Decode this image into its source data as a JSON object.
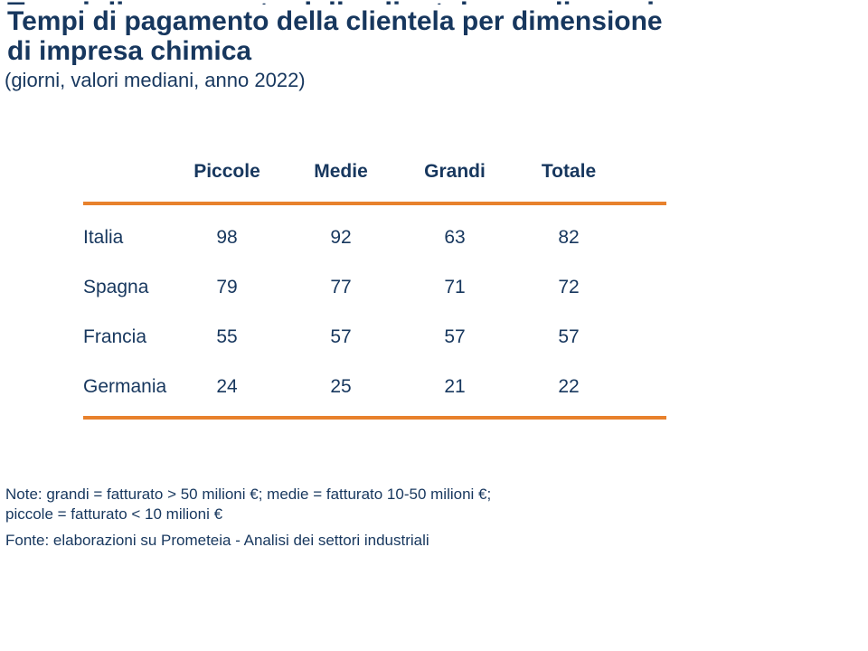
{
  "slide": {
    "title_line1": "Tempi di pagamento della clientela per dimensione",
    "title_line2": "di impresa chimica",
    "subtitle": "(giorni, valori mediani, anno 2022)",
    "note_line1": "Note: grandi = fatturato > 50 milioni €; medie = fatturato 10-50 milioni €;",
    "note_line2": "piccole = fatturato < 10 milioni €",
    "source": "Fonte: elaborazioni su Prometeia - Analisi dei settori industriali"
  },
  "colors": {
    "navy_text": "#17375E",
    "orange_rule": "#E8812C"
  },
  "chart_data": {
    "type": "table",
    "title": "Tempi di pagamento della clientela per dimensione di impresa chimica",
    "subtitle": "(giorni, valori mediani, anno 2022)",
    "unit": "giorni, valori mediani, anno 2022",
    "columns": [
      "Piccole",
      "Medie",
      "Grandi",
      "Totale"
    ],
    "rows": [
      {
        "label": "Italia",
        "values": [
          98,
          92,
          63,
          82
        ]
      },
      {
        "label": "Spagna",
        "values": [
          79,
          77,
          71,
          72
        ]
      },
      {
        "label": "Francia",
        "values": [
          55,
          57,
          57,
          57
        ]
      },
      {
        "label": "Germania",
        "values": [
          24,
          25,
          21,
          22
        ]
      }
    ],
    "note": "Note: grandi = fatturato > 50 milioni €; medie = fatturato 10-50 milioni €; piccole = fatturato < 10 milioni €",
    "source": "Fonte: elaborazioni su Prometeia - Analisi dei settori industriali"
  }
}
